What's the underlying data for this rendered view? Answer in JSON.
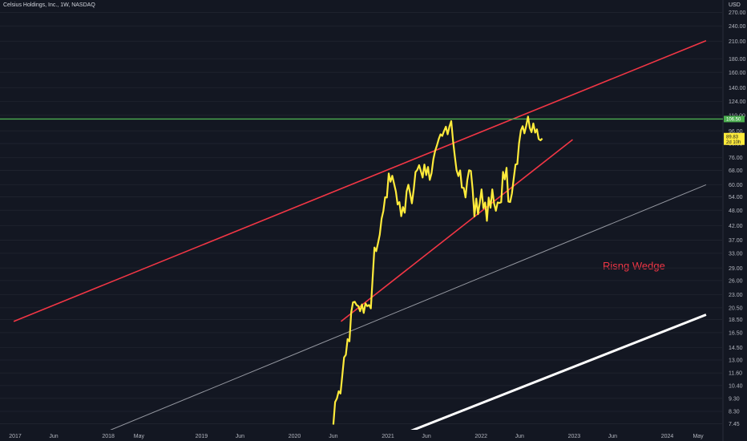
{
  "chart_title": "Celsius Holdings, Inc., 1W, NASDAQ",
  "currency": "USD",
  "annotation": "Risng Wedge",
  "colors": {
    "background": "#131722",
    "price": "#ffeb3b",
    "trend": "#f23645",
    "resistance": "#4caf50",
    "channel_gray": "#9598a1",
    "channel_white": "#ffffff",
    "axis_text": "#b2b5be"
  },
  "chart_data": {
    "type": "line",
    "scale": "log",
    "interval": "1W",
    "ylim": [
      7.0,
      290.0
    ],
    "y_ticks": [
      "270.00",
      "240.00",
      "210.00",
      "180.00",
      "160.00",
      "140.00",
      "124.00",
      "110.00",
      "96.00",
      "86.00",
      "76.00",
      "68.00",
      "60.00",
      "54.00",
      "48.00",
      "42.00",
      "37.00",
      "33.00",
      "29.00",
      "26.00",
      "23.00",
      "20.50",
      "18.50",
      "16.50",
      "14.50",
      "13.00",
      "11.60",
      "10.40",
      "9.30",
      "8.30",
      "7.45"
    ],
    "x_ticks": [
      "2017",
      "Jun",
      "2018",
      "May",
      "2019",
      "Jun",
      "2020",
      "Jun",
      "2021",
      "Jun",
      "2022",
      "Jun",
      "2023",
      "Jun",
      "2024",
      "May"
    ],
    "current_price": "89.83",
    "current_countdown": "2d 10h",
    "resistance_level": "106.50",
    "series": [
      {
        "points": [
          [
            "2020-06-01",
            7.4
          ],
          [
            "2020-06-08",
            9.0
          ],
          [
            "2020-06-15",
            9.3
          ],
          [
            "2020-06-22",
            9.9
          ],
          [
            "2020-06-29",
            9.7
          ],
          [
            "2020-07-06",
            11.3
          ],
          [
            "2020-07-13",
            13.3
          ],
          [
            "2020-07-20",
            13.6
          ],
          [
            "2020-07-27",
            15.6
          ],
          [
            "2020-08-03",
            15.3
          ],
          [
            "2020-08-10",
            19.7
          ],
          [
            "2020-08-17",
            21.5
          ],
          [
            "2020-08-24",
            21.6
          ],
          [
            "2020-08-31",
            21.0
          ],
          [
            "2020-09-07",
            20.8
          ],
          [
            "2020-09-14",
            19.9
          ],
          [
            "2020-09-21",
            21.1
          ],
          [
            "2020-09-28",
            19.6
          ],
          [
            "2020-10-05",
            21.3
          ],
          [
            "2020-10-12",
            20.8
          ],
          [
            "2020-10-19",
            21.0
          ],
          [
            "2020-10-26",
            20.4
          ],
          [
            "2020-11-02",
            26.5
          ],
          [
            "2020-11-09",
            34.7
          ],
          [
            "2020-11-16",
            33.6
          ],
          [
            "2020-11-23",
            36.0
          ],
          [
            "2020-11-30",
            38.8
          ],
          [
            "2020-12-07",
            44.6
          ],
          [
            "2020-12-14",
            47.7
          ],
          [
            "2020-12-21",
            53.8
          ],
          [
            "2020-12-28",
            53.7
          ],
          [
            "2021-01-04",
            66.2
          ],
          [
            "2021-01-11",
            61.6
          ],
          [
            "2021-01-18",
            64.9
          ],
          [
            "2021-01-25",
            60.5
          ],
          [
            "2021-02-01",
            56.6
          ],
          [
            "2021-02-08",
            50.5
          ],
          [
            "2021-02-15",
            51.6
          ],
          [
            "2021-02-22",
            45.6
          ],
          [
            "2021-03-01",
            49.4
          ],
          [
            "2021-03-08",
            47.0
          ],
          [
            "2021-03-15",
            56.6
          ],
          [
            "2021-03-22",
            60.0
          ],
          [
            "2021-03-29",
            55.6
          ],
          [
            "2021-04-05",
            51.0
          ],
          [
            "2021-04-12",
            57.6
          ],
          [
            "2021-04-19",
            67.0
          ],
          [
            "2021-04-26",
            68.3
          ],
          [
            "2021-05-03",
            71.2
          ],
          [
            "2021-05-10",
            67.6
          ],
          [
            "2021-05-17",
            63.9
          ],
          [
            "2021-05-24",
            71.6
          ],
          [
            "2021-05-31",
            65.3
          ],
          [
            "2021-06-07",
            70.1
          ],
          [
            "2021-06-14",
            62.6
          ],
          [
            "2021-06-21",
            66.3
          ],
          [
            "2021-06-28",
            75.0
          ],
          [
            "2021-07-05",
            80.6
          ],
          [
            "2021-07-12",
            84.5
          ],
          [
            "2021-07-19",
            89.4
          ],
          [
            "2021-07-26",
            93.2
          ],
          [
            "2021-08-02",
            91.9
          ],
          [
            "2021-08-09",
            95.9
          ],
          [
            "2021-08-16",
            99.6
          ],
          [
            "2021-08-23",
            93.2
          ],
          [
            "2021-08-30",
            99.6
          ],
          [
            "2021-09-06",
            104.6
          ],
          [
            "2021-09-13",
            88.3
          ],
          [
            "2021-09-20",
            77.2
          ],
          [
            "2021-09-27",
            68.2
          ],
          [
            "2021-10-04",
            64.7
          ],
          [
            "2021-10-11",
            68.0
          ],
          [
            "2021-10-18",
            58.5
          ],
          [
            "2021-10-25",
            58.4
          ],
          [
            "2021-11-01",
            53.7
          ],
          [
            "2021-11-08",
            62.4
          ],
          [
            "2021-11-15",
            68.1
          ],
          [
            "2021-11-22",
            67.7
          ],
          [
            "2021-11-29",
            57.6
          ],
          [
            "2021-12-06",
            45.5
          ],
          [
            "2021-12-13",
            53.2
          ],
          [
            "2021-12-20",
            46.4
          ],
          [
            "2021-12-27",
            51.2
          ],
          [
            "2022-01-03",
            57.6
          ],
          [
            "2022-01-10",
            48.9
          ],
          [
            "2022-01-17",
            51.4
          ],
          [
            "2022-01-24",
            43.8
          ],
          [
            "2022-01-31",
            53.7
          ],
          [
            "2022-02-07",
            49.1
          ],
          [
            "2022-02-14",
            57.6
          ],
          [
            "2022-02-21",
            51.0
          ],
          [
            "2022-02-28",
            47.8
          ],
          [
            "2022-03-07",
            51.4
          ],
          [
            "2022-03-14",
            51.2
          ],
          [
            "2022-03-21",
            51.5
          ],
          [
            "2022-03-28",
            67.1
          ],
          [
            "2022-04-04",
            62.9
          ],
          [
            "2022-04-11",
            69.6
          ],
          [
            "2022-04-18",
            51.8
          ],
          [
            "2022-04-25",
            51.6
          ],
          [
            "2022-05-02",
            55.6
          ],
          [
            "2022-05-09",
            63.2
          ],
          [
            "2022-05-16",
            71.6
          ],
          [
            "2022-05-23",
            71.9
          ],
          [
            "2022-05-30",
            86.1
          ],
          [
            "2022-06-06",
            96.4
          ],
          [
            "2022-06-13",
            100.0
          ],
          [
            "2022-06-20",
            94.0
          ],
          [
            "2022-06-27",
            100.3
          ],
          [
            "2022-07-04",
            108.8
          ],
          [
            "2022-07-11",
            98.6
          ],
          [
            "2022-07-18",
            95.0
          ],
          [
            "2022-07-25",
            102.4
          ],
          [
            "2022-08-01",
            94.6
          ],
          [
            "2022-08-08",
            97.3
          ],
          [
            "2022-08-15",
            89.4
          ],
          [
            "2022-08-22",
            88.4
          ],
          [
            "2022-08-29",
            89.83
          ]
        ]
      }
    ],
    "trendlines": [
      {
        "role": "wedge-upper",
        "color": "#f23645",
        "from": [
          "2016-12-26",
          18.2
        ],
        "to": [
          "2024-06-01",
          211.0
        ]
      },
      {
        "role": "wedge-lower",
        "color": "#f23645",
        "from": [
          "2020-07-01",
          18.2
        ],
        "to": [
          "2022-12-26",
          89.0
        ]
      },
      {
        "role": "parallel",
        "color": "#9598a1",
        "from": [
          "2018-01-01",
          7.0
        ],
        "to": [
          "2024-06-01",
          60.0
        ]
      },
      {
        "role": "parallel",
        "color": "#ffffff",
        "from": [
          "2021-04-01",
          7.0
        ],
        "to": [
          "2024-06-01",
          19.3
        ]
      }
    ],
    "horizontal_lines": [
      {
        "role": "resistance",
        "color": "#4caf50",
        "value": 106.5
      }
    ]
  }
}
